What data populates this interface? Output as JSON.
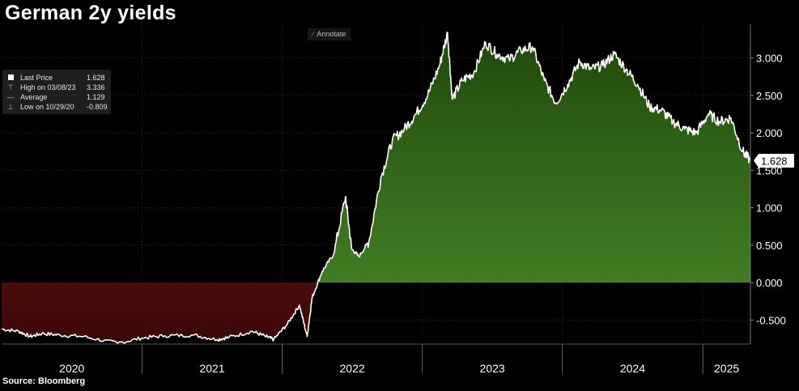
{
  "title": "German 2y yields",
  "source": "Source: Bloomberg",
  "annotate_label": "Annotate",
  "legend": {
    "items": [
      {
        "label": "Last Price",
        "value": "1.628"
      },
      {
        "label": "High on 03/08/23",
        "value": "3.336"
      },
      {
        "label": "Average",
        "value": "1.129"
      },
      {
        "label": "Low on 10/29/20",
        "value": "-0.809"
      }
    ]
  },
  "colors": {
    "positive_fill": "#3f7a1e",
    "negative_fill": "#8b1a1a",
    "line": "#ffffff",
    "background": "#000000"
  },
  "chart_data": {
    "type": "area",
    "title": "German 2y yields",
    "xlabel": "",
    "ylabel": "",
    "x_ticks": [
      "2020",
      "2021",
      "2022",
      "2023",
      "2024",
      "2025"
    ],
    "y_ticks": [
      "-0.500",
      "0.000",
      "0.500",
      "1.000",
      "1.500",
      "2.000",
      "2.500",
      "3.000"
    ],
    "ylim": [
      -0.82,
      3.45
    ],
    "xlim": [
      "2020-01-01",
      "2025-05-05"
    ],
    "grid": true,
    "legend_position": "top-left",
    "last_value": 1.628,
    "last_value_label": "1.628",
    "x": [
      "2020-01-01",
      "2020-02-15",
      "2020-03-15",
      "2020-04-15",
      "2020-06-01",
      "2020-08-01",
      "2020-10-29",
      "2020-12-31",
      "2021-03-01",
      "2021-05-15",
      "2021-07-15",
      "2021-08-15",
      "2021-10-15",
      "2021-11-20",
      "2021-12-10",
      "2022-01-15",
      "2022-02-15",
      "2022-03-07",
      "2022-03-20",
      "2022-04-15",
      "2022-05-15",
      "2022-06-15",
      "2022-07-01",
      "2022-07-20",
      "2022-08-15",
      "2022-09-15",
      "2022-10-15",
      "2022-11-15",
      "2022-12-15",
      "2023-01-15",
      "2023-02-15",
      "2023-03-08",
      "2023-03-20",
      "2023-04-15",
      "2023-05-15",
      "2023-06-15",
      "2023-07-15",
      "2023-08-15",
      "2023-09-15",
      "2023-10-15",
      "2023-11-15",
      "2023-12-15",
      "2024-01-15",
      "2024-02-15",
      "2024-03-15",
      "2024-04-15",
      "2024-05-15",
      "2024-06-15",
      "2024-07-15",
      "2024-08-15",
      "2024-09-15",
      "2024-10-15",
      "2024-11-15",
      "2024-12-15",
      "2025-01-15",
      "2025-02-15",
      "2025-03-15",
      "2025-04-15",
      "2025-05-05"
    ],
    "values": [
      -0.62,
      -0.65,
      -0.72,
      -0.68,
      -0.7,
      -0.72,
      -0.809,
      -0.74,
      -0.71,
      -0.7,
      -0.76,
      -0.73,
      -0.65,
      -0.72,
      -0.76,
      -0.55,
      -0.3,
      -0.72,
      -0.2,
      0.15,
      0.38,
      1.15,
      0.45,
      0.35,
      0.55,
      1.4,
      1.9,
      2.05,
      2.25,
      2.5,
      2.9,
      3.336,
      2.45,
      2.7,
      2.8,
      3.2,
      3.05,
      2.98,
      3.1,
      3.15,
      2.7,
      2.4,
      2.65,
      2.95,
      2.85,
      2.9,
      3.05,
      2.85,
      2.65,
      2.35,
      2.3,
      2.15,
      2.05,
      2.0,
      2.25,
      2.15,
      2.2,
      1.75,
      1.628
    ]
  }
}
